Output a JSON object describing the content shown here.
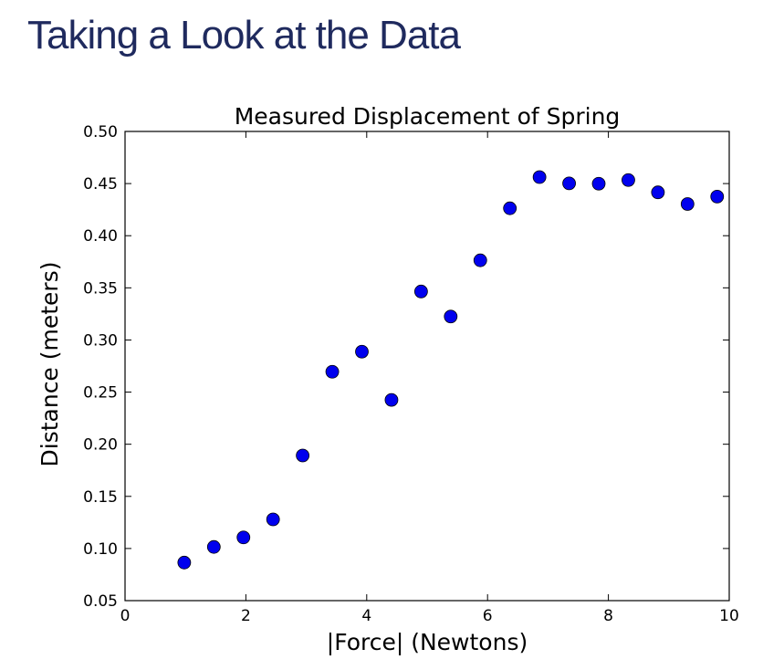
{
  "slide": {
    "title": "Taking a Look at the Data"
  },
  "chart_data": {
    "type": "scatter",
    "title": "Measured Displacement of Spring",
    "xlabel": "|Force| (Newtons)",
    "ylabel": "Distance (meters)",
    "xlim": [
      0,
      10
    ],
    "ylim": [
      0.05,
      0.5
    ],
    "xticks": [
      0,
      2,
      4,
      6,
      8,
      10
    ],
    "xtick_labels": [
      "0",
      "2",
      "4",
      "6",
      "8",
      "10"
    ],
    "yticks": [
      0.05,
      0.1,
      0.15,
      0.2,
      0.25,
      0.3,
      0.35,
      0.4,
      0.45,
      0.5
    ],
    "ytick_labels": [
      "0.05",
      "0.10",
      "0.15",
      "0.20",
      "0.25",
      "0.30",
      "0.35",
      "0.40",
      "0.45",
      "0.50"
    ],
    "grid": false,
    "marker_color": "#0000ee",
    "x": [
      0.98,
      1.47,
      1.96,
      2.45,
      2.94,
      3.43,
      3.92,
      4.41,
      4.9,
      5.39,
      5.88,
      6.37,
      6.86,
      7.35,
      7.84,
      8.33,
      8.82,
      9.31,
      9.8
    ],
    "y": [
      0.0865,
      0.1015,
      0.1106,
      0.1279,
      0.1892,
      0.2695,
      0.2888,
      0.2425,
      0.3465,
      0.3225,
      0.3764,
      0.4263,
      0.4562,
      0.4502,
      0.4499,
      0.4534,
      0.4416,
      0.4304,
      0.4375
    ]
  }
}
